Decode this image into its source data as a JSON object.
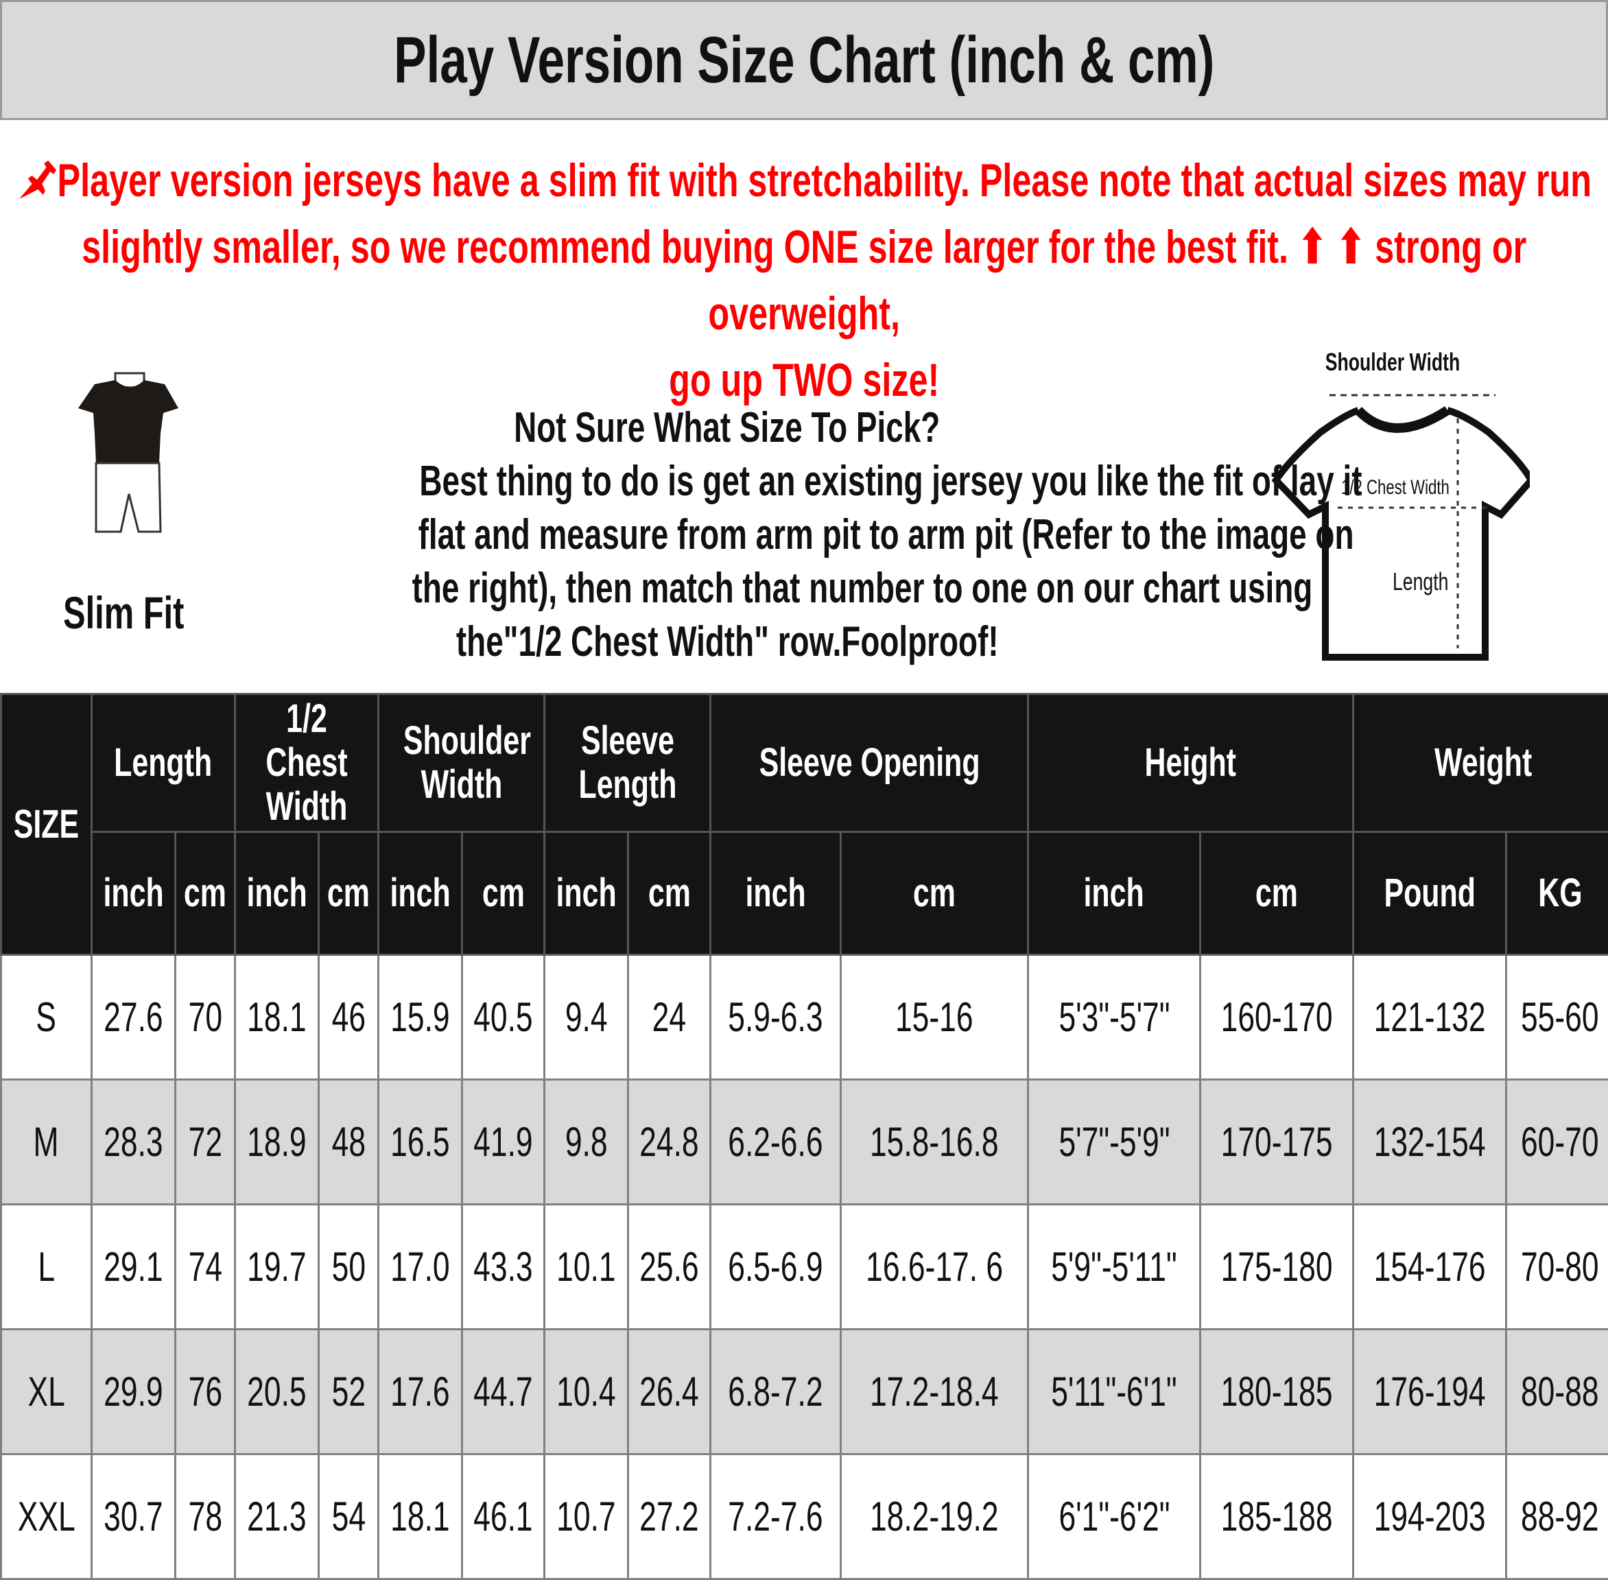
{
  "title": "Play Version Size Chart (inch & cm)",
  "notice": {
    "icon": "pushpin-icon",
    "color": "#ff0000",
    "lines": [
      "Player version jerseys have a slim fit with stretchability. Please note that actual sizes may run",
      "slightly smaller, so we recommend buying ONE size larger for the best fit. ⬆ ⬆ strong or overweight,",
      "go up TWO size!"
    ]
  },
  "slim_fit": {
    "label": "Slim Fit",
    "icon": "slim-fit-mannequin-icon"
  },
  "info": {
    "lines": [
      "Not Sure What Size To Pick?",
      "Best thing to do is get an existing jersey you like the fit of lay it",
      "flat and measure from arm pit to arm pit (Refer to the image on",
      "the right), then match that number to one on our chart using",
      "the\"1/2 Chest Width\" row.Foolproof!"
    ]
  },
  "diagram": {
    "shoulder": "Shoulder Width",
    "chest": "1/2 Chest Width",
    "length": "Length"
  },
  "table": {
    "size_header": "SIZE",
    "groups": [
      "Length",
      "1/2 Chest Width",
      "Shoulder Width",
      "Sleeve Length",
      "Sleeve Opening",
      "Height",
      "Weight"
    ],
    "units": [
      "inch",
      "cm",
      "inch",
      "cm",
      "inch",
      "cm",
      "inch",
      "cm",
      "inch",
      "cm",
      "inch",
      "cm",
      "Pound",
      "KG"
    ],
    "rows": [
      [
        "S",
        "27.6",
        "70",
        "18.1",
        "46",
        "15.9",
        "40.5",
        "9.4",
        "24",
        "5.9-6.3",
        "15-16",
        "5'3\"-5'7\"",
        "160-170",
        "121-132",
        "55-60"
      ],
      [
        "M",
        "28.3",
        "72",
        "18.9",
        "48",
        "16.5",
        "41.9",
        "9.8",
        "24.8",
        "6.2-6.6",
        "15.8-16.8",
        "5'7\"-5'9\"",
        "170-175",
        "132-154",
        "60-70"
      ],
      [
        "L",
        "29.1",
        "74",
        "19.7",
        "50",
        "17.0",
        "43.3",
        "10.1",
        "25.6",
        "6.5-6.9",
        "16.6-17. 6",
        "5'9\"-5'11\"",
        "175-180",
        "154-176",
        "70-80"
      ],
      [
        "XL",
        "29.9",
        "76",
        "20.5",
        "52",
        "17.6",
        "44.7",
        "10.4",
        "26.4",
        "6.8-7.2",
        "17.2-18.4",
        "5'11\"-6'1\"",
        "180-185",
        "176-194",
        "80-88"
      ],
      [
        "XXL",
        "30.7",
        "78",
        "21.3",
        "54",
        "18.1",
        "46.1",
        "10.7",
        "27.2",
        "7.2-7.6",
        "18.2-19.2",
        "6'1\"-6'2\"",
        "185-188",
        "194-203",
        "88-92"
      ]
    ]
  }
}
